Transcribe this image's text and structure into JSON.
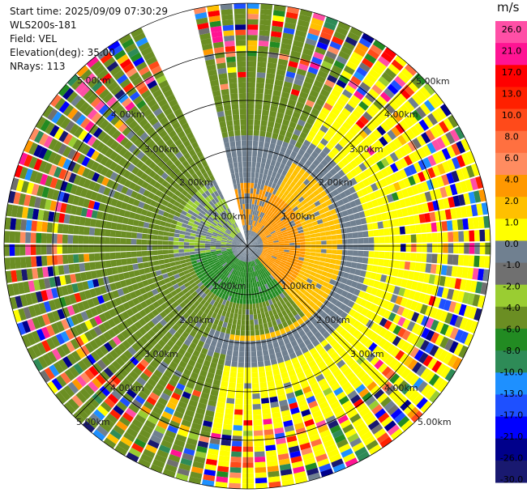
{
  "header": {
    "start_time": "Start time: 2025/09/09 07:30:29",
    "instrument": "WLS200s-181",
    "field": "Field: VEL",
    "elevation": "Elevation(deg): 35.00",
    "nrays": "NRays: 113"
  },
  "colorbar": {
    "unit": "m/s",
    "ticks": [
      "26.0",
      "21.0",
      "17.0",
      "13.0",
      "10.0",
      "8.0",
      "6.0",
      "4.0",
      "2.0",
      "1.0",
      "0.0",
      "-1.0",
      "-2.0",
      "-4.0",
      "-6.0",
      "-8.0",
      "-10.0",
      "-13.0",
      "-17.0",
      "-21.0",
      "-26.0",
      "-30.0"
    ],
    "colors": [
      "#ff4fa6",
      "#ff1493",
      "#ff0000",
      "#ff2000",
      "#ff4a1a",
      "#ff7040",
      "#ff8c60",
      "#ff9800",
      "#ffc000",
      "#ffff00",
      "#708090",
      "#707070",
      "#9acd32",
      "#6b8e23",
      "#228b22",
      "#2e8b57",
      "#1e90ff",
      "#1e50ff",
      "#0000ff",
      "#00008b",
      "#191970"
    ]
  },
  "range_labels": {
    "km1": "1.00km",
    "km2": "2.00km",
    "km3": "3.00km",
    "km4": "4.00km",
    "km5": "5.00km"
  }
}
